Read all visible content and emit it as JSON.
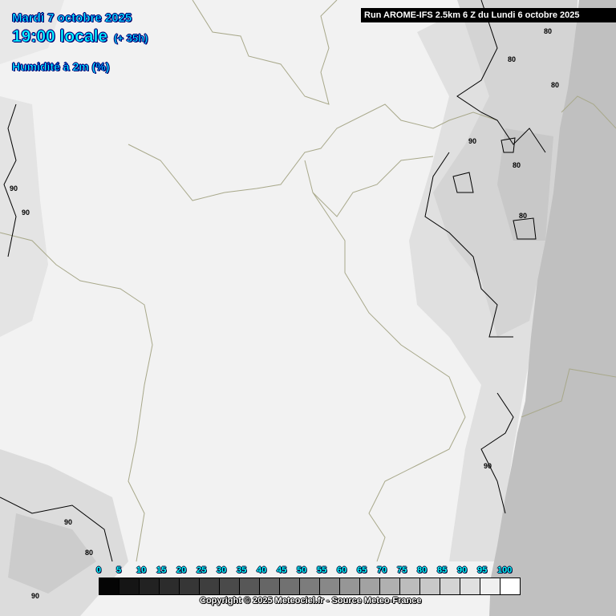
{
  "header": {
    "date": "Mardi 7 octobre 2025",
    "time": "19:00 locale",
    "lead": "(+ 35h)",
    "variable": "Humidité à 2m (%)"
  },
  "run_info": "Run AROME-IFS 2.5km 6 Z du Lundi 6 octobre 2025",
  "colors": {
    "land": "#f2f2f2",
    "sea": "#c0c0c0",
    "text_accent": "#00ffff",
    "borders": "#a8a88a"
  },
  "legend": {
    "values": [
      "0",
      "5",
      "10",
      "15",
      "20",
      "25",
      "30",
      "35",
      "40",
      "45",
      "50",
      "55",
      "60",
      "65",
      "70",
      "75",
      "80",
      "85",
      "90",
      "95",
      "100"
    ],
    "colors": [
      "#050505",
      "#151515",
      "#222222",
      "#2c2c2c",
      "#363636",
      "#3e3e3e",
      "#4a4a4a",
      "#575757",
      "#666666",
      "#717171",
      "#7c7c7c",
      "#888888",
      "#969696",
      "#a2a2a2",
      "#b0b0b0",
      "#bcbcbc",
      "#c8c8c8",
      "#d4d4d4",
      "#e0e0e0",
      "#f0f0f0",
      "#ffffff"
    ]
  },
  "contour_labels": [
    "80",
    "80",
    "80",
    "80",
    "80",
    "80",
    "90",
    "90",
    "90",
    "90",
    "90",
    "90"
  ],
  "copyright": "Copyright © 2025 Meteociel.fr - Source Meteo-France"
}
